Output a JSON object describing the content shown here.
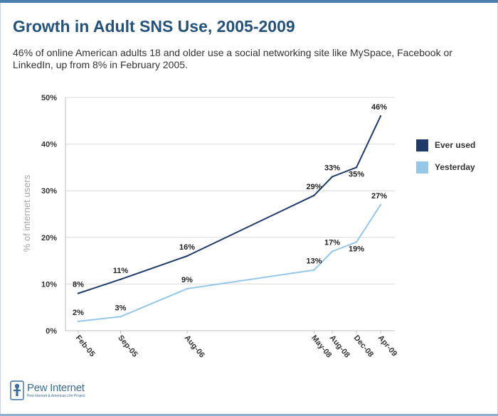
{
  "header": {
    "title": "Growth in Adult SNS Use, 2005-2009",
    "subtitle": "46% of online American adults 18 and older use a social networking site like MySpace, Facebook or LinkedIn, up from 8% in February 2005."
  },
  "colors": {
    "ever_used": "#1f3a6a",
    "yesterday": "#94c7e8",
    "grid": "#d9d9d9",
    "title": "#24527a"
  },
  "chart_data": {
    "type": "line",
    "title": "Growth in Adult SNS Use, 2005-2009",
    "xlabel": "",
    "ylabel": "% of internet users",
    "ylim": [
      0,
      50
    ],
    "yticks": [
      "0%",
      "10%",
      "20%",
      "30%",
      "40%",
      "50%"
    ],
    "ytick_values": [
      0,
      10,
      20,
      30,
      40,
      50
    ],
    "categories": [
      "Feb-05",
      "Sep-05",
      "Aug-06",
      "May-08",
      "Aug-08",
      "Dec-08",
      "Apr-09"
    ],
    "x_months": [
      0,
      7,
      18,
      39,
      42,
      46,
      50
    ],
    "grid": true,
    "legend_position": "right",
    "series": [
      {
        "name": "Ever used",
        "values": [
          8,
          11,
          16,
          29,
          33,
          35,
          46
        ],
        "labels": [
          "8%",
          "11%",
          "16%",
          "29%",
          "33%",
          "35%",
          "46%"
        ]
      },
      {
        "name": "Yesterday",
        "values": [
          2,
          3,
          9,
          13,
          17,
          19,
          27
        ],
        "labels": [
          "2%",
          "3%",
          "9%",
          "13%",
          "17%",
          "19%",
          "27%"
        ]
      }
    ]
  },
  "logo": {
    "name": "Pew Internet",
    "tagline": "Pew Internet & American Life Project"
  }
}
